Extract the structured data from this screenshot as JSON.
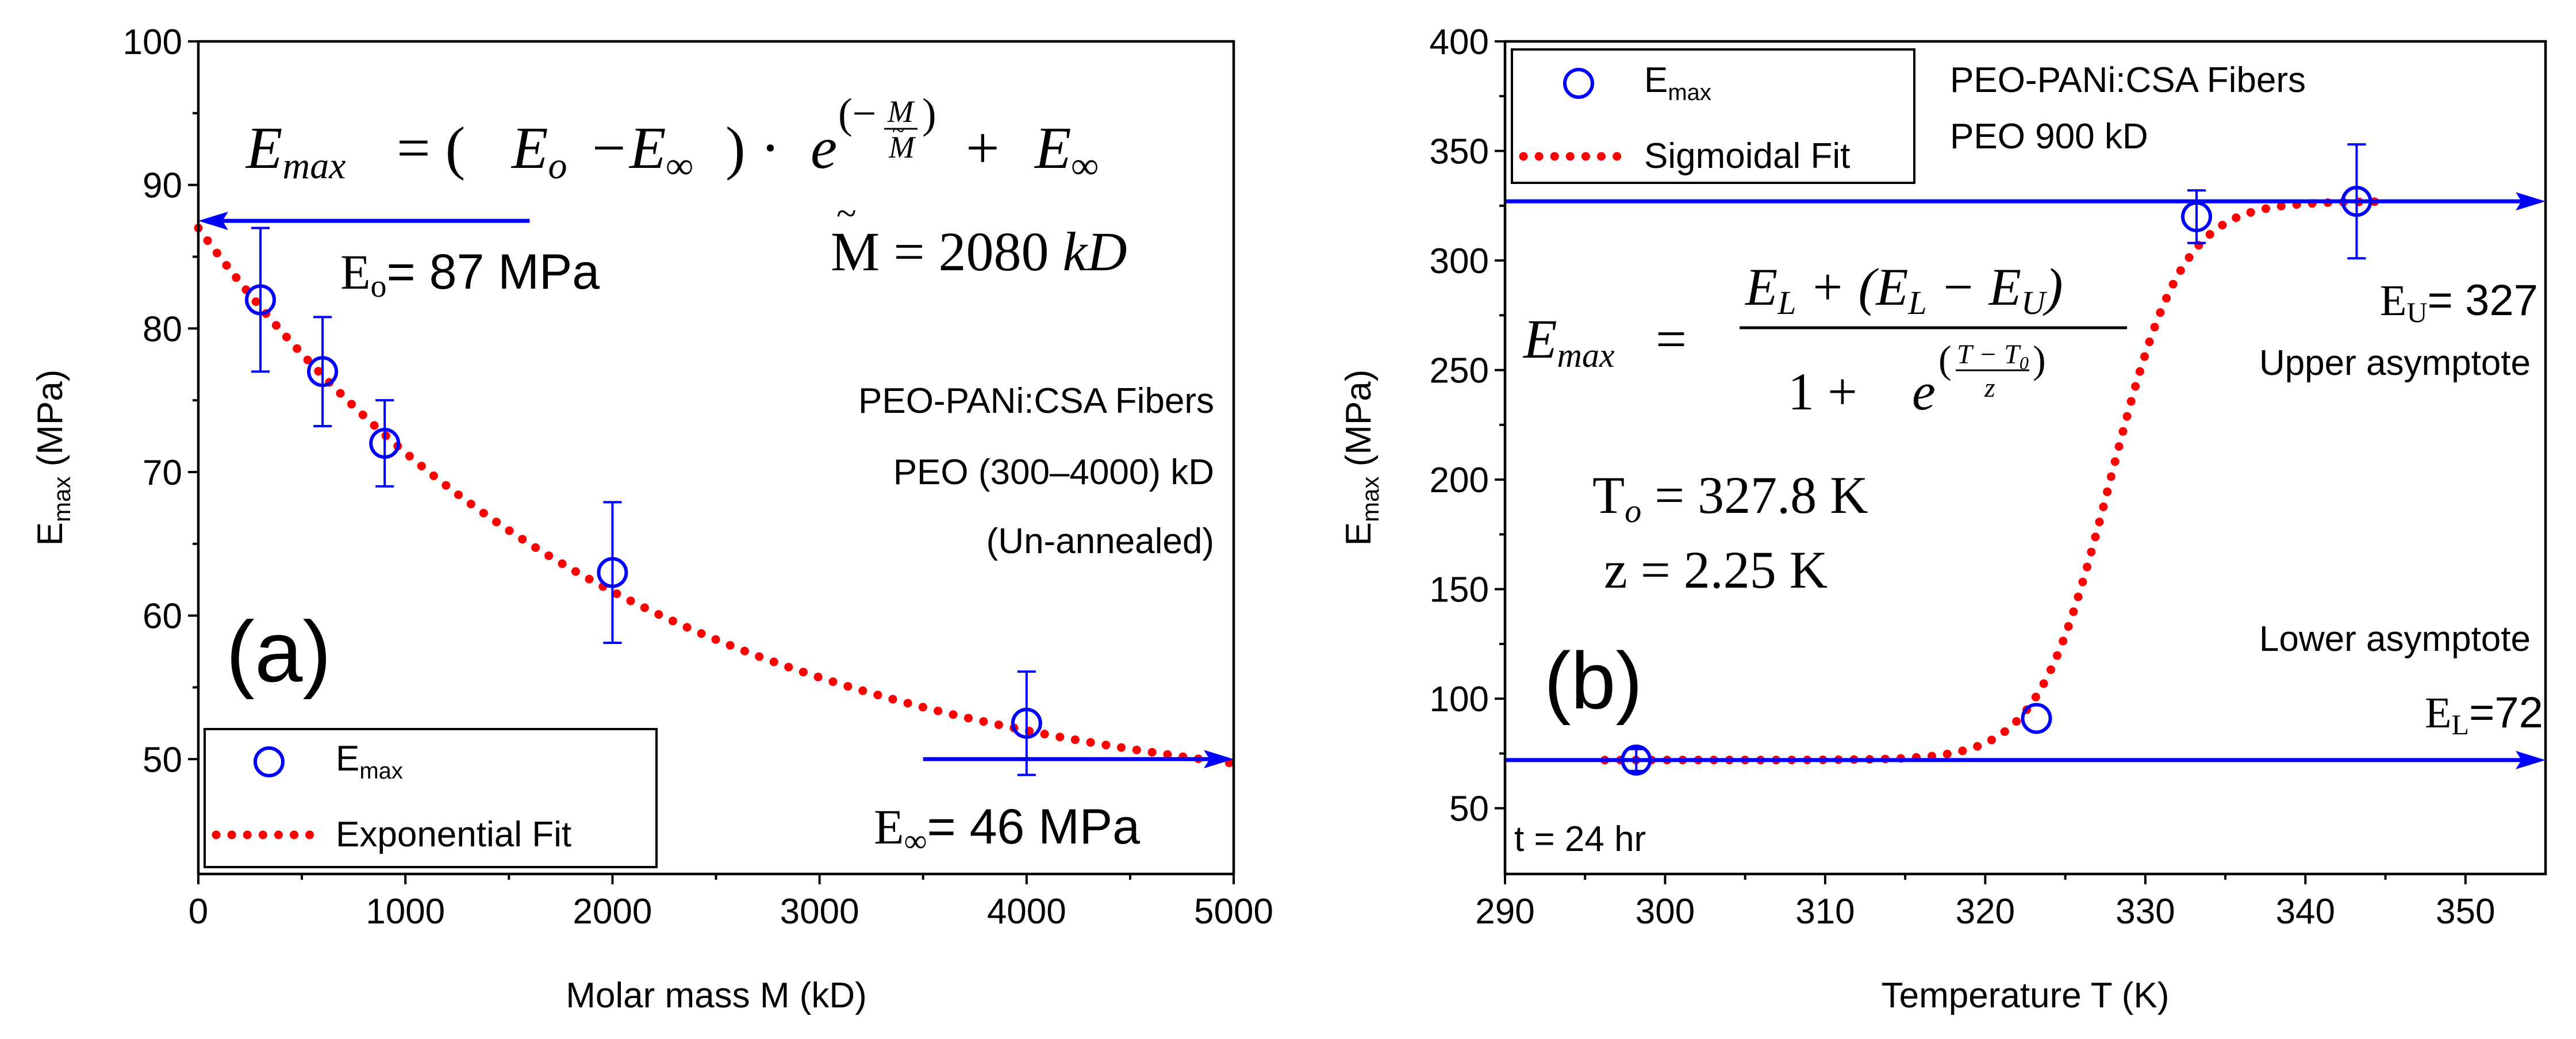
{
  "chart_data": [
    {
      "type": "scatter",
      "panel_label": "(a)",
      "xlabel": "Molar mass M (kD)",
      "ylabel": "E",
      "ylabel_sub": "max",
      "ylabel_unit": " (MPa)",
      "xlim": [
        0,
        5000
      ],
      "ylim": [
        42,
        100
      ],
      "xticks": [
        0,
        1000,
        2000,
        3000,
        4000,
        5000
      ],
      "xtick_labels": [
        "0",
        "1000",
        "2000",
        "3000",
        "4000",
        "5000"
      ],
      "yticks": [
        50,
        60,
        70,
        80,
        90,
        100
      ],
      "ytick_labels": [
        "50",
        "60",
        "70",
        "80",
        "90",
        "100"
      ],
      "series": [
        {
          "name": "E",
          "name_sub": "max",
          "marker": "open-circle",
          "color": "#0000ff",
          "x": [
            300,
            600,
            900,
            2000,
            4000
          ],
          "y": [
            82,
            77,
            72,
            63,
            52.5
          ],
          "err": [
            5,
            3.8,
            3,
            4.9,
            3.6
          ]
        },
        {
          "name": "Exponential Fit",
          "line": "dotted",
          "color": "#ff0000",
          "model": {
            "kind": "exponential",
            "E0": 87,
            "Einf": 46,
            "Mtilde": 2080
          }
        }
      ],
      "equation": {
        "lhs": "E",
        "lhs_sub": "max",
        "eq": " =  (",
        "e0": "E",
        "e0_sub": "o",
        "minus": "−",
        "einf": "E",
        "einf_sub": "∞",
        "mid": ") · ",
        "base": "e",
        "exp_open": "(−",
        "exp_num": "M",
        "exp_den": "M",
        "exp_den_mark": "~",
        "exp_close": ")",
        "plus": "+ ",
        "tail": "E",
        "tail_sub": "∞"
      },
      "mtilde_text": {
        "sym": "M",
        "mark": "~",
        "eq": " = 2080 ",
        "unit": "kD"
      },
      "e0_label": {
        "sym": "E",
        "sub": "o",
        "text": "= 87 MPa"
      },
      "einf_label": {
        "sym": "E",
        "sub": "∞",
        "text": "= 46 MPa"
      },
      "annotations": [
        "PEO-PANi:CSA Fibers",
        "PEO (300–4000) kD",
        "(Un-annealed)"
      ],
      "arrows": [
        {
          "direction": "left",
          "y": 87.5,
          "x_from": 1600,
          "x_to": 0
        },
        {
          "direction": "right",
          "y": 50,
          "x_from": 3500,
          "x_to": 5000
        }
      ]
    },
    {
      "type": "scatter",
      "panel_label": "(b)",
      "xlabel": "Temperature T (K)",
      "ylabel": "E",
      "ylabel_sub": "max",
      "ylabel_unit": " (MPa)",
      "xlim": [
        290,
        355
      ],
      "ylim": [
        20,
        400
      ],
      "xticks": [
        290,
        300,
        310,
        320,
        330,
        340,
        350
      ],
      "xtick_labels": [
        "290",
        "300",
        "310",
        "320",
        "330",
        "340",
        "350"
      ],
      "yticks": [
        50,
        100,
        150,
        200,
        250,
        300,
        350,
        400
      ],
      "ytick_labels": [
        "50",
        "100",
        "150",
        "200",
        "250",
        "300",
        "350",
        "400"
      ],
      "series": [
        {
          "name": "E",
          "name_sub": "max",
          "marker": "open-circle",
          "color": "#0000ff",
          "x": [
            298.2,
            323.2,
            333.2,
            343.2
          ],
          "y": [
            72,
            91,
            320,
            327
          ],
          "err": [
            5,
            0,
            12,
            26
          ]
        },
        {
          "name": "Sigmoidal Fit",
          "line": "dotted",
          "color": "#ff0000",
          "model": {
            "kind": "sigmoid",
            "EL": 72,
            "EU": 327,
            "T0": 327.8,
            "z": 2.25
          }
        }
      ],
      "equation": {
        "lhs": "E",
        "lhs_sub": "max",
        "eq": " =",
        "num_a": "E",
        "num_a_sub": "L",
        "num_b": " + (",
        "num_c": "E",
        "num_c_sub": "L",
        "num_d": " − ",
        "num_e": "E",
        "num_e_sub": "U",
        "num_f": ")",
        "den_a": "1 +",
        "den_base": "e",
        "den_exp": "(",
        "den_exp_num": "T − T",
        "den_exp_num_sub": "0",
        "den_exp_den": "z",
        "den_exp_close": ")"
      },
      "t0_text": {
        "sym": "T",
        "sub": "o",
        "text": " = 327.8 K"
      },
      "z_text": "z = 2.25 K",
      "eu_label": {
        "sym": "E",
        "sub": "U",
        "text": "= 327"
      },
      "el_label": {
        "sym": "E",
        "sub": "L",
        "text": "=72"
      },
      "annotations": [
        "PEO-PANi:CSA Fibers",
        "PEO 900 kD",
        "Upper asymptote",
        "Lower asymptote",
        "t = 24 hr"
      ],
      "arrows": [
        {
          "direction": "right",
          "y": 327,
          "x_from": 290,
          "x_to": 355
        },
        {
          "direction": "right",
          "y": 72,
          "x_from": 290,
          "x_to": 355
        }
      ]
    }
  ]
}
